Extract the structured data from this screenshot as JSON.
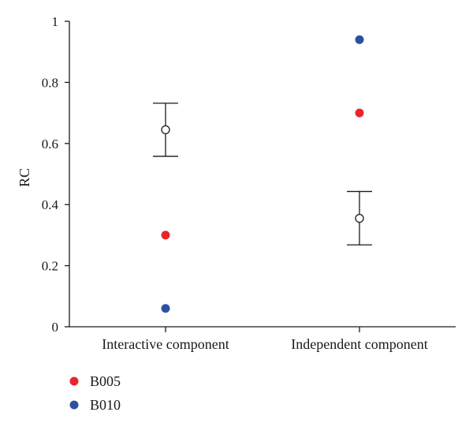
{
  "chart_data": {
    "type": "scatter",
    "ylabel": "RC",
    "xlabel": "",
    "ylim": [
      0,
      1
    ],
    "yticks": [
      0,
      0.2,
      0.4,
      0.6,
      0.8,
      1
    ],
    "ytick_labels": [
      "0",
      "0.2",
      "0.4",
      "0.6",
      "0.8",
      "1"
    ],
    "categories": [
      "Interactive component",
      "Independent component"
    ],
    "series": [
      {
        "name": "B005",
        "color": "#e8262a",
        "values": [
          0.3,
          0.7
        ]
      },
      {
        "name": "B010",
        "color": "#2e4fa3",
        "values": [
          0.06,
          0.94
        ]
      }
    ],
    "mean_markers": {
      "marker": "open-circle",
      "values": [
        0.645,
        0.355
      ],
      "error_low": [
        0.558,
        0.268
      ],
      "error_high": [
        0.732,
        0.443
      ]
    },
    "grid": false,
    "legend_position": "bottom-left"
  }
}
